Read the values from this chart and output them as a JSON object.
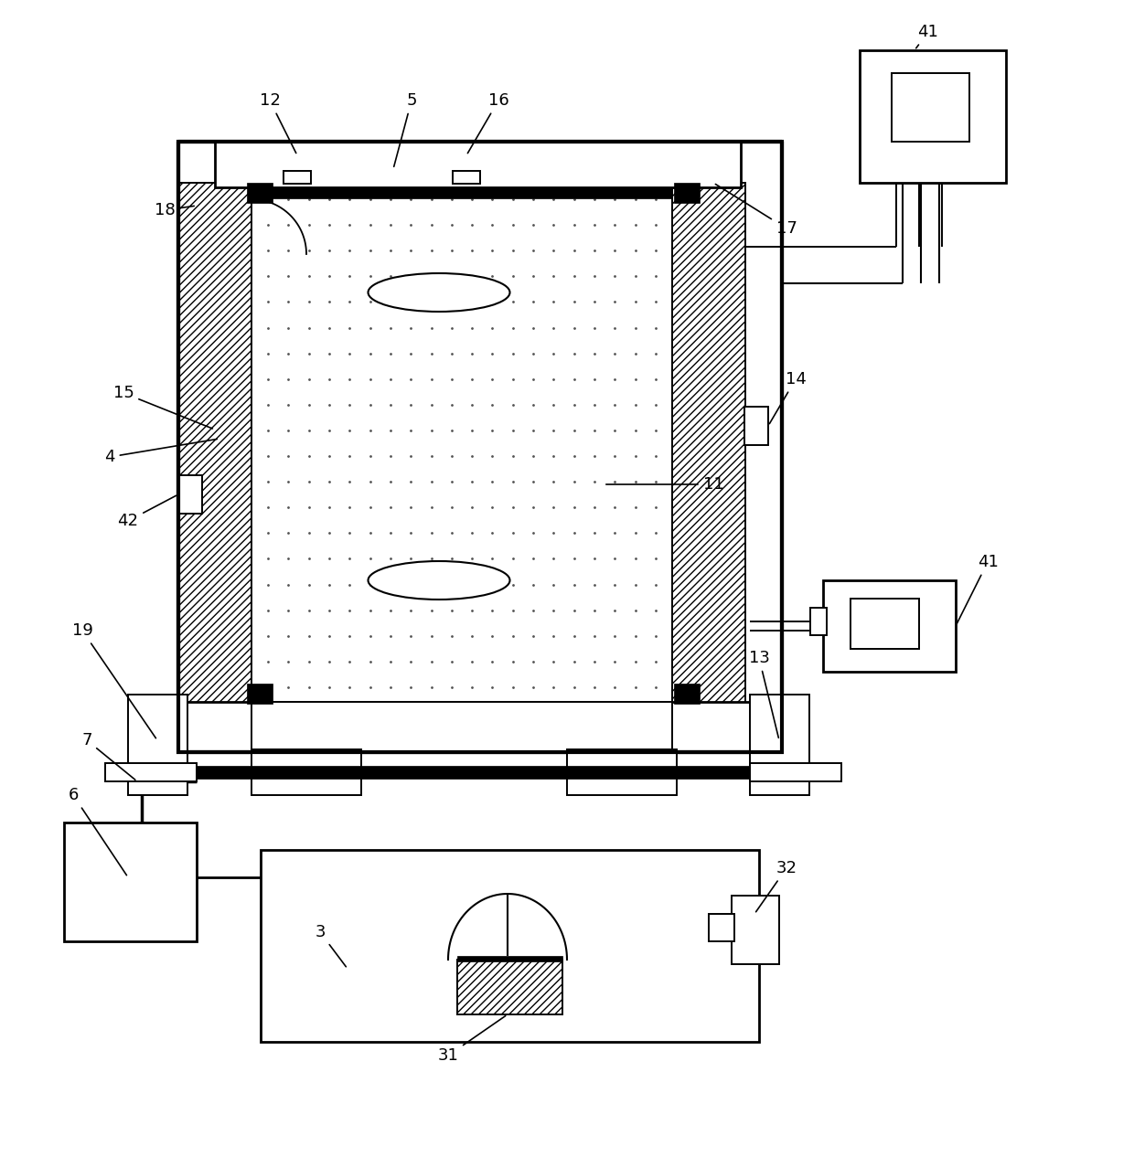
{
  "bg_color": "#ffffff",
  "lc": "#000000",
  "lw_main": 2.0,
  "lw_thick": 3.0,
  "lw_thin": 1.4,
  "dot_color": "#555555",
  "dot_size": 2.0,
  "label_fs": 13
}
